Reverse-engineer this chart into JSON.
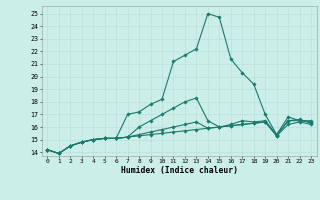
{
  "xlabel": "Humidex (Indice chaleur)",
  "xlim": [
    -0.5,
    23.5
  ],
  "ylim": [
    13.7,
    25.6
  ],
  "yticks": [
    14,
    15,
    16,
    17,
    18,
    19,
    20,
    21,
    22,
    23,
    24,
    25
  ],
  "xticks": [
    0,
    1,
    2,
    3,
    4,
    5,
    6,
    7,
    8,
    9,
    10,
    11,
    12,
    13,
    14,
    15,
    16,
    17,
    18,
    19,
    20,
    21,
    22,
    23
  ],
  "bg_color": "#cceee8",
  "grid_color": "#b8ddd6",
  "line_color": "#1a7a6e",
  "lines": [
    [
      14.2,
      13.9,
      14.5,
      14.8,
      15.0,
      15.1,
      15.1,
      15.2,
      15.3,
      15.4,
      15.5,
      15.6,
      15.7,
      15.8,
      15.9,
      16.0,
      16.1,
      16.2,
      16.3,
      16.4,
      15.3,
      16.5,
      16.6,
      16.3
    ],
    [
      14.2,
      13.9,
      14.5,
      14.8,
      15.0,
      15.1,
      15.1,
      15.2,
      15.4,
      15.6,
      15.8,
      16.0,
      16.2,
      16.4,
      15.9,
      16.0,
      16.1,
      16.2,
      16.3,
      16.4,
      15.3,
      16.2,
      16.4,
      16.2
    ],
    [
      14.2,
      13.9,
      14.5,
      14.8,
      15.0,
      15.1,
      15.1,
      15.2,
      16.0,
      16.5,
      17.0,
      17.5,
      18.0,
      18.3,
      16.5,
      16.0,
      16.2,
      16.5,
      16.4,
      16.5,
      15.4,
      16.5,
      16.5,
      16.4
    ],
    [
      14.2,
      13.9,
      14.5,
      14.8,
      15.0,
      15.1,
      15.1,
      17.0,
      17.2,
      17.8,
      18.2,
      21.2,
      21.7,
      22.2,
      25.0,
      24.7,
      21.4,
      20.3,
      19.4,
      17.0,
      15.4,
      16.8,
      16.5,
      16.5
    ]
  ]
}
